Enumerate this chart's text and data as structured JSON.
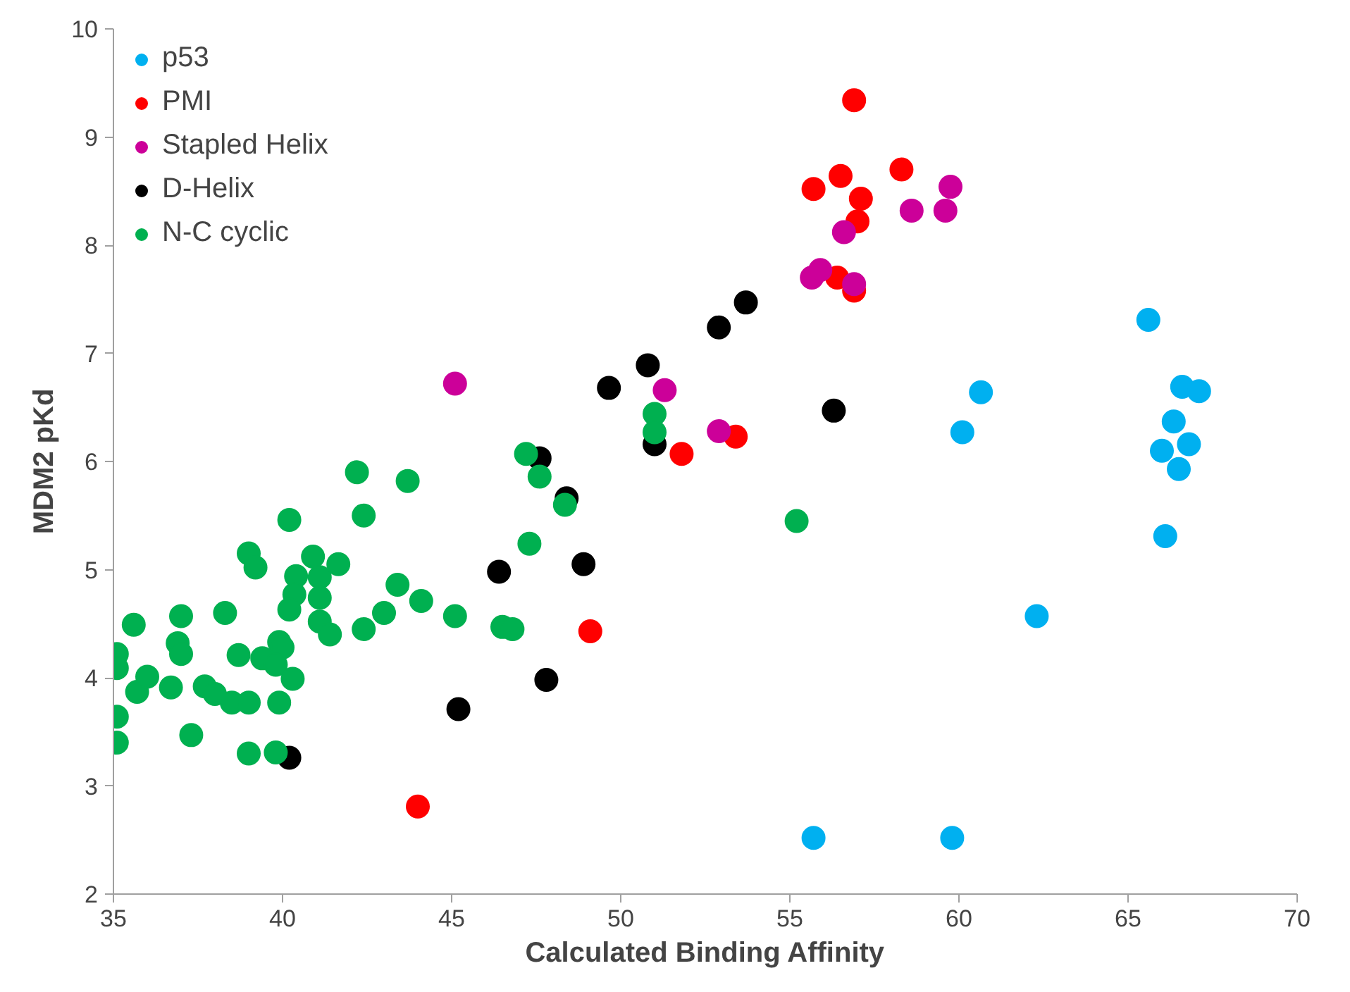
{
  "chart_data": {
    "type": "scatter",
    "xlabel": "Calculated Binding Affinity",
    "ylabel": "MDM2 pKd",
    "xlim": [
      35,
      70
    ],
    "xticks": [
      35,
      40,
      45,
      50,
      55,
      60,
      65,
      70
    ],
    "ylim": [
      2,
      10
    ],
    "yticks": [
      2,
      3,
      4,
      5,
      6,
      7,
      8,
      9,
      10
    ],
    "grid": false,
    "legend": "top left",
    "marker": "circle",
    "series": [
      {
        "name": "p53",
        "color": "#00b0f0",
        "x": [
          65.6,
          60.65,
          60.1,
          66.6,
          67.1,
          66.35,
          66.0,
          66.8,
          66.5,
          66.1,
          62.3,
          55.7,
          59.8
        ],
        "values": [
          7.31,
          6.64,
          6.27,
          6.69,
          6.65,
          6.37,
          6.1,
          6.16,
          5.93,
          5.31,
          4.57,
          2.52,
          2.52
        ]
      },
      {
        "name": "PMI",
        "color": "#ff0000",
        "x": [
          56.9,
          58.3,
          56.5,
          55.7,
          57.1,
          57.0,
          56.4,
          56.9,
          53.4,
          51.8,
          49.1,
          44.0
        ],
        "values": [
          9.34,
          8.7,
          8.64,
          8.52,
          8.43,
          8.22,
          7.7,
          7.58,
          6.23,
          6.07,
          4.43,
          2.81
        ]
      },
      {
        "name": "Stapled Helix",
        "color": "#cc0099",
        "x": [
          58.6,
          59.6,
          59.75,
          56.6,
          55.65,
          55.9,
          56.9,
          51.3,
          52.9,
          45.1
        ],
        "values": [
          8.32,
          8.32,
          8.54,
          8.12,
          7.7,
          7.77,
          7.64,
          6.66,
          6.28,
          6.72
        ]
      },
      {
        "name": "D-Helix",
        "color": "#000000",
        "x": [
          53.7,
          52.9,
          50.8,
          49.65,
          56.3,
          51.0,
          47.6,
          48.4,
          46.4,
          48.9,
          47.8,
          45.2,
          40.2
        ],
        "values": [
          7.47,
          7.24,
          6.89,
          6.68,
          6.47,
          6.16,
          6.03,
          5.66,
          4.98,
          5.05,
          3.98,
          3.71,
          3.26
        ]
      },
      {
        "name": "N-C cyclic",
        "color": "#00b050",
        "x": [
          47.2,
          47.6,
          48.35,
          47.3,
          51.0,
          51.0,
          55.2,
          45.1,
          46.5,
          46.8,
          42.2,
          43.7,
          42.4,
          40.2,
          39.0,
          39.2,
          40.9,
          40.4,
          41.1,
          41.65,
          40.35,
          40.2,
          41.1,
          43.4,
          44.1,
          43.0,
          42.4,
          41.1,
          41.4,
          37.0,
          38.3,
          35.6,
          39.9,
          40.0,
          38.7,
          39.4,
          39.8,
          40.3,
          36.9,
          37.0,
          35.1,
          35.1,
          35.7,
          36.0,
          36.7,
          37.7,
          38.0,
          38.5,
          39.0,
          39.9,
          35.1,
          37.3,
          35.1,
          39.0,
          39.8
        ],
        "values": [
          6.07,
          5.86,
          5.6,
          5.24,
          6.44,
          6.27,
          5.45,
          4.57,
          4.47,
          4.45,
          5.9,
          5.82,
          5.5,
          5.46,
          5.15,
          5.02,
          5.12,
          4.94,
          4.93,
          5.05,
          4.77,
          4.63,
          4.74,
          4.86,
          4.71,
          4.6,
          4.45,
          4.52,
          4.4,
          4.57,
          4.6,
          4.49,
          4.33,
          4.28,
          4.21,
          4.18,
          4.12,
          3.99,
          4.32,
          4.22,
          4.22,
          4.09,
          3.87,
          4.01,
          3.91,
          3.92,
          3.85,
          3.77,
          3.77,
          3.77,
          3.64,
          3.47,
          3.4,
          3.3,
          3.31
        ]
      }
    ]
  }
}
